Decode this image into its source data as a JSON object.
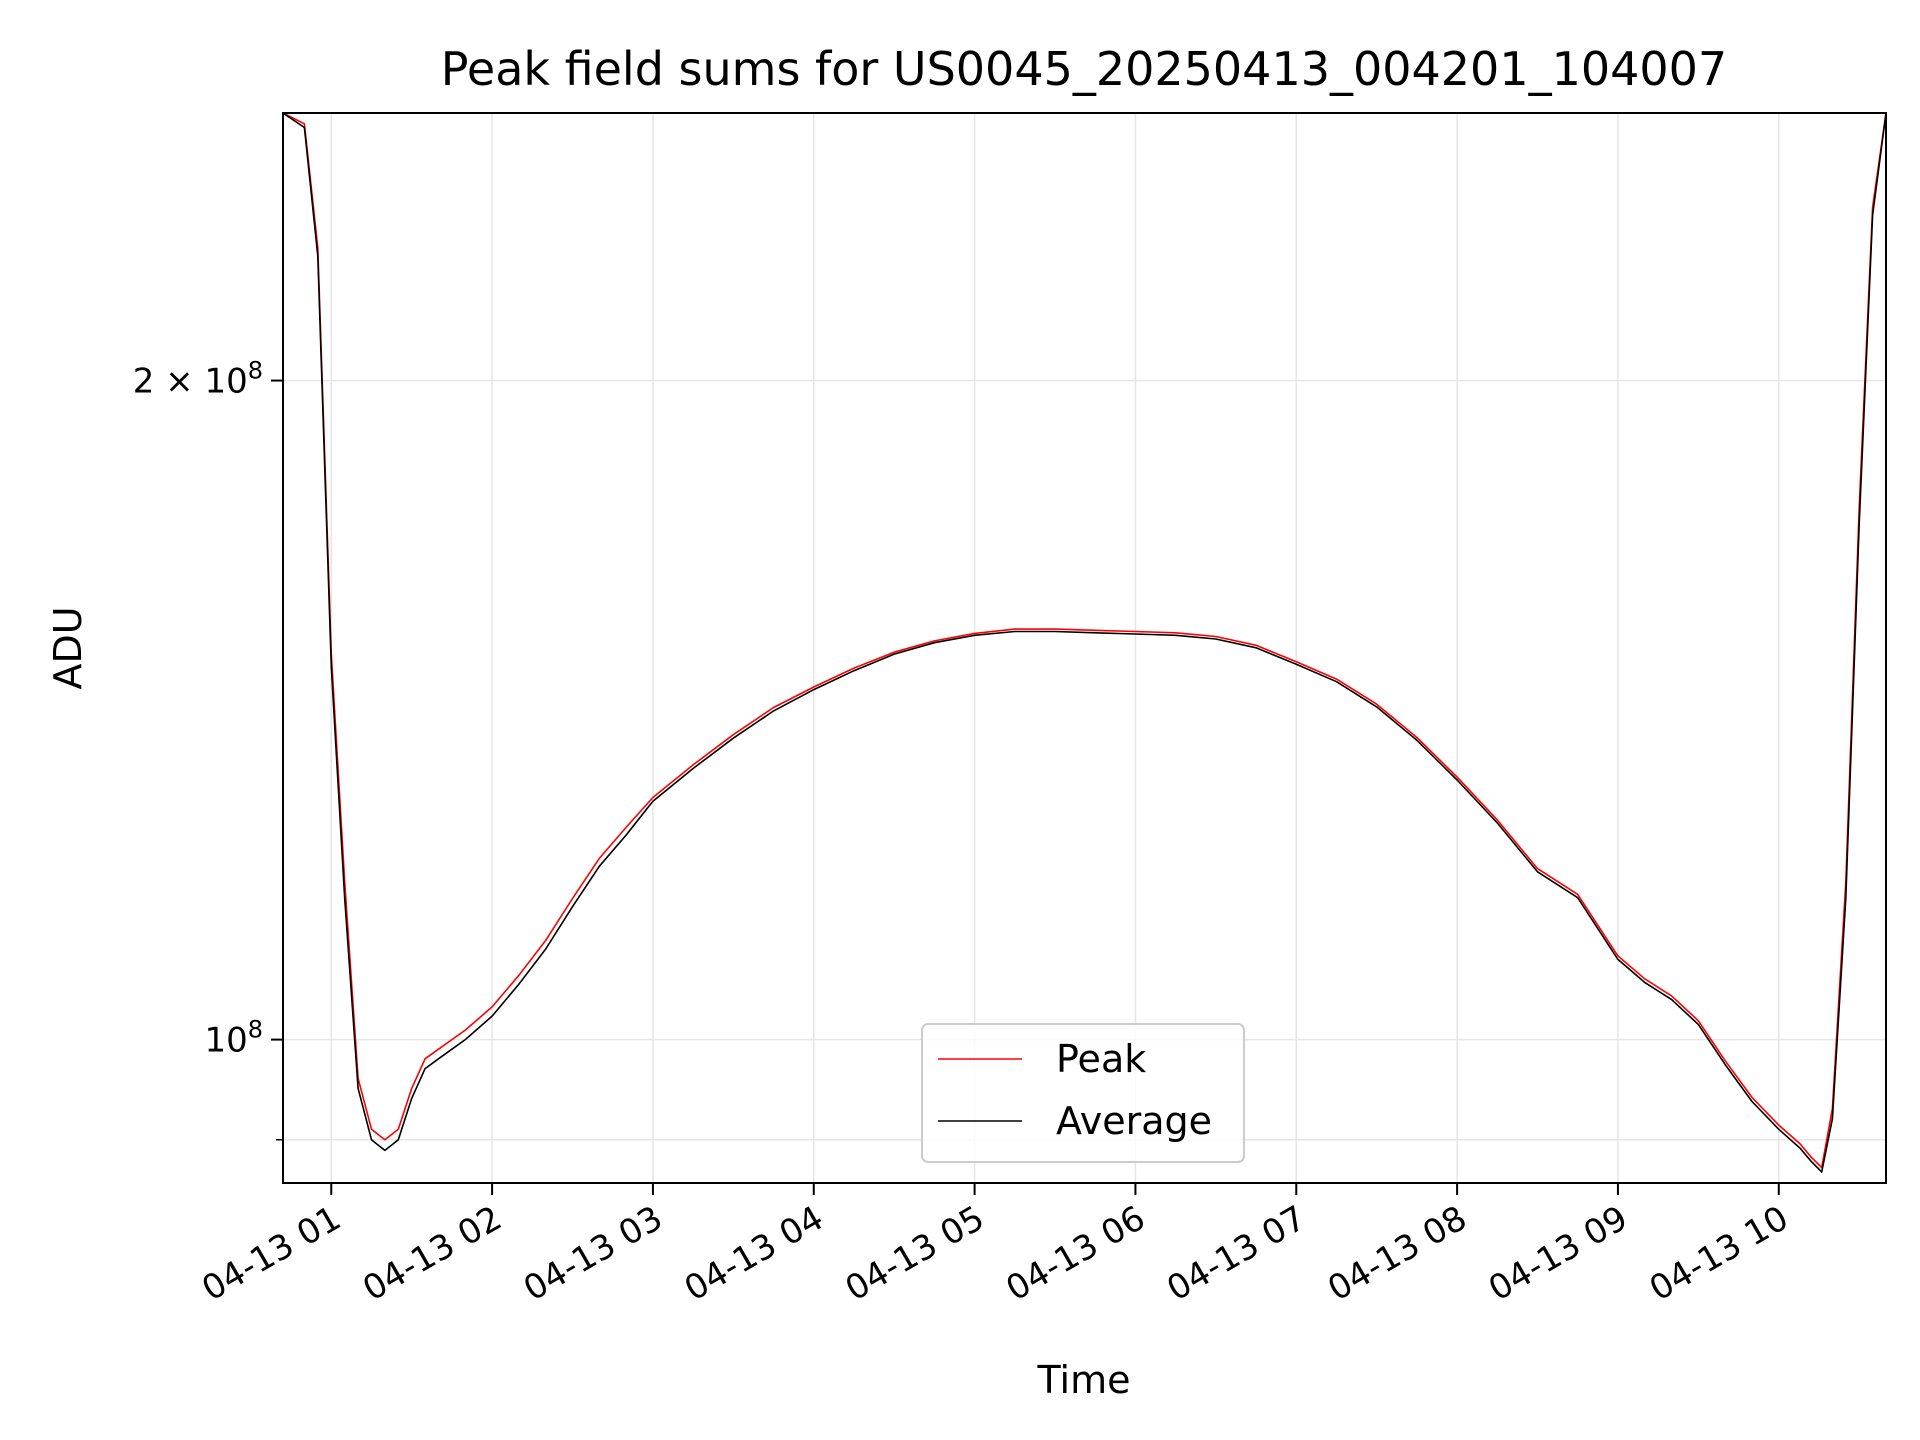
{
  "chart_data": {
    "type": "line",
    "title": "Peak field sums for US0045_20250413_004201_104007",
    "xlabel": "Time",
    "ylabel": "ADU",
    "y_scale": "log",
    "xlim": [
      "2025-04-13 00:42",
      "2025-04-13 10:40"
    ],
    "ylim": [
      86000000.0,
      265000000.0
    ],
    "x_ticks": [
      "2025-04-13 01:00",
      "2025-04-13 02:00",
      "2025-04-13 03:00",
      "2025-04-13 04:00",
      "2025-04-13 05:00",
      "2025-04-13 06:00",
      "2025-04-13 07:00",
      "2025-04-13 08:00",
      "2025-04-13 09:00",
      "2025-04-13 10:00"
    ],
    "x_tick_labels": [
      "04-13 01",
      "04-13 02",
      "04-13 03",
      "04-13 04",
      "04-13 05",
      "04-13 06",
      "04-13 07",
      "04-13 08",
      "04-13 09",
      "04-13 10"
    ],
    "y_ticks": [
      100000000,
      200000000
    ],
    "y_tick_labels": [
      {
        "base": "10",
        "exp": "8"
      },
      {
        "coef": "2 × ",
        "base": "10",
        "exp": "8"
      }
    ],
    "grid": true,
    "legend_position": "lower-center",
    "series": [
      {
        "name": "Peak",
        "color": "#ff0000",
        "x": [
          "2025-04-13 00:42",
          "2025-04-13 00:50",
          "2025-04-13 00:55",
          "2025-04-13 01:00",
          "2025-04-13 01:05",
          "2025-04-13 01:10",
          "2025-04-13 01:15",
          "2025-04-13 01:20",
          "2025-04-13 01:25",
          "2025-04-13 01:30",
          "2025-04-13 01:35",
          "2025-04-13 01:40",
          "2025-04-13 01:45",
          "2025-04-13 01:50",
          "2025-04-13 02:00",
          "2025-04-13 02:10",
          "2025-04-13 02:20",
          "2025-04-13 02:30",
          "2025-04-13 02:40",
          "2025-04-13 02:50",
          "2025-04-13 03:00",
          "2025-04-13 03:15",
          "2025-04-13 03:30",
          "2025-04-13 03:45",
          "2025-04-13 04:00",
          "2025-04-13 04:15",
          "2025-04-13 04:30",
          "2025-04-13 04:45",
          "2025-04-13 05:00",
          "2025-04-13 05:15",
          "2025-04-13 05:30",
          "2025-04-13 05:45",
          "2025-04-13 06:00",
          "2025-04-13 06:15",
          "2025-04-13 06:30",
          "2025-04-13 06:45",
          "2025-04-13 07:00",
          "2025-04-13 07:15",
          "2025-04-13 07:30",
          "2025-04-13 07:45",
          "2025-04-13 08:00",
          "2025-04-13 08:15",
          "2025-04-13 08:30",
          "2025-04-13 08:45",
          "2025-04-13 09:00",
          "2025-04-13 09:10",
          "2025-04-13 09:20",
          "2025-04-13 09:30",
          "2025-04-13 09:40",
          "2025-04-13 09:50",
          "2025-04-13 10:00",
          "2025-04-13 10:08",
          "2025-04-13 10:12",
          "2025-04-13 10:16",
          "2025-04-13 10:20",
          "2025-04-13 10:25",
          "2025-04-13 10:30",
          "2025-04-13 10:35",
          "2025-04-13 10:40"
        ],
        "y": [
          265000000,
          262000000,
          230000000,
          150000000,
          118000000,
          96000000,
          91000000,
          90000000,
          91000000,
          95000000,
          98000000,
          99000000,
          100000000,
          101000000,
          103500000,
          107000000,
          111000000,
          116000000,
          121000000,
          125000000,
          129000000,
          133500000,
          137800000,
          141800000,
          144900000,
          147800000,
          150300000,
          152100000,
          153300000,
          154000000,
          154000000,
          153800000,
          153600000,
          153400000,
          152800000,
          151400000,
          148800000,
          146100000,
          142300000,
          137400000,
          131800000,
          126000000,
          119700000,
          116500000,
          109200000,
          106600000,
          104700000,
          102000000,
          97800000,
          94100000,
          91400000,
          89600000,
          88400000,
          87400000,
          93000000,
          118000000,
          175000000,
          240000000,
          265000000
        ]
      },
      {
        "name": "Average",
        "color": "#000000",
        "x": [
          "2025-04-13 00:42",
          "2025-04-13 00:50",
          "2025-04-13 00:55",
          "2025-04-13 01:00",
          "2025-04-13 01:05",
          "2025-04-13 01:10",
          "2025-04-13 01:15",
          "2025-04-13 01:20",
          "2025-04-13 01:25",
          "2025-04-13 01:30",
          "2025-04-13 01:35",
          "2025-04-13 01:40",
          "2025-04-13 01:45",
          "2025-04-13 01:50",
          "2025-04-13 02:00",
          "2025-04-13 02:10",
          "2025-04-13 02:20",
          "2025-04-13 02:30",
          "2025-04-13 02:40",
          "2025-04-13 02:50",
          "2025-04-13 03:00",
          "2025-04-13 03:15",
          "2025-04-13 03:30",
          "2025-04-13 03:45",
          "2025-04-13 04:00",
          "2025-04-13 04:15",
          "2025-04-13 04:30",
          "2025-04-13 04:45",
          "2025-04-13 05:00",
          "2025-04-13 05:15",
          "2025-04-13 05:30",
          "2025-04-13 05:45",
          "2025-04-13 06:00",
          "2025-04-13 06:15",
          "2025-04-13 06:30",
          "2025-04-13 06:45",
          "2025-04-13 07:00",
          "2025-04-13 07:15",
          "2025-04-13 07:30",
          "2025-04-13 07:45",
          "2025-04-13 08:00",
          "2025-04-13 08:15",
          "2025-04-13 08:30",
          "2025-04-13 08:45",
          "2025-04-13 09:00",
          "2025-04-13 09:10",
          "2025-04-13 09:20",
          "2025-04-13 09:30",
          "2025-04-13 09:40",
          "2025-04-13 09:50",
          "2025-04-13 10:00",
          "2025-04-13 10:08",
          "2025-04-13 10:12",
          "2025-04-13 10:16",
          "2025-04-13 10:20",
          "2025-04-13 10:25",
          "2025-04-13 10:30",
          "2025-04-13 10:35",
          "2025-04-13 10:40"
        ],
        "y": [
          265000000,
          261000000,
          228000000,
          148000000,
          116000000,
          95000000,
          90000000,
          89000000,
          90000000,
          94000000,
          97000000,
          98000000,
          99000000,
          100000000,
          102500000,
          106000000,
          110000000,
          115000000,
          120000000,
          124000000,
          128500000,
          133000000,
          137300000,
          141300000,
          144500000,
          147400000,
          150000000,
          151800000,
          153000000,
          153600000,
          153600000,
          153400000,
          153200000,
          153000000,
          152400000,
          151000000,
          148400000,
          145700000,
          141900000,
          137000000,
          131400000,
          125600000,
          119300000,
          116100000,
          108800000,
          106200000,
          104300000,
          101600000,
          97400000,
          93700000,
          91000000,
          89200000,
          88000000,
          87000000,
          92000000,
          116000000,
          172000000,
          238000000,
          265000000
        ]
      }
    ]
  }
}
